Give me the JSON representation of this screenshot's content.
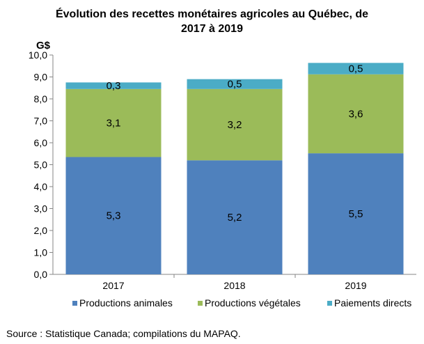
{
  "chart_data": {
    "type": "bar",
    "stacked": true,
    "title_line1": "Évolution des recettes monétaires agricoles au Québec, de",
    "title_line2": "2017 à 2019",
    "ylabel": "G$",
    "xlabel": "",
    "ylim": [
      0,
      10
    ],
    "ytick_step": 1,
    "ytick_labels": [
      "0,0",
      "1,0",
      "2,0",
      "3,0",
      "4,0",
      "5,0",
      "6,0",
      "7,0",
      "8,0",
      "9,0",
      "10,0"
    ],
    "categories": [
      "2017",
      "2018",
      "2019"
    ],
    "series": [
      {
        "name": "Productions animales",
        "color": "#4f81bd",
        "values": [
          5.35,
          5.2,
          5.52
        ],
        "labels": [
          "5,3",
          "5,2",
          "5,5"
        ]
      },
      {
        "name": "Productions végétales",
        "color": "#9bbb59",
        "values": [
          3.1,
          3.25,
          3.6
        ],
        "labels": [
          "3,1",
          "3,2",
          "3,6"
        ]
      },
      {
        "name": "Paiements directs",
        "color": "#4bacc6",
        "values": [
          0.3,
          0.45,
          0.52
        ],
        "labels": [
          "0,3",
          "0,5",
          "0,5"
        ]
      }
    ],
    "grid": false,
    "legend_position": "bottom"
  },
  "source": "Source : Statistique Canada; compilations du MAPAQ."
}
